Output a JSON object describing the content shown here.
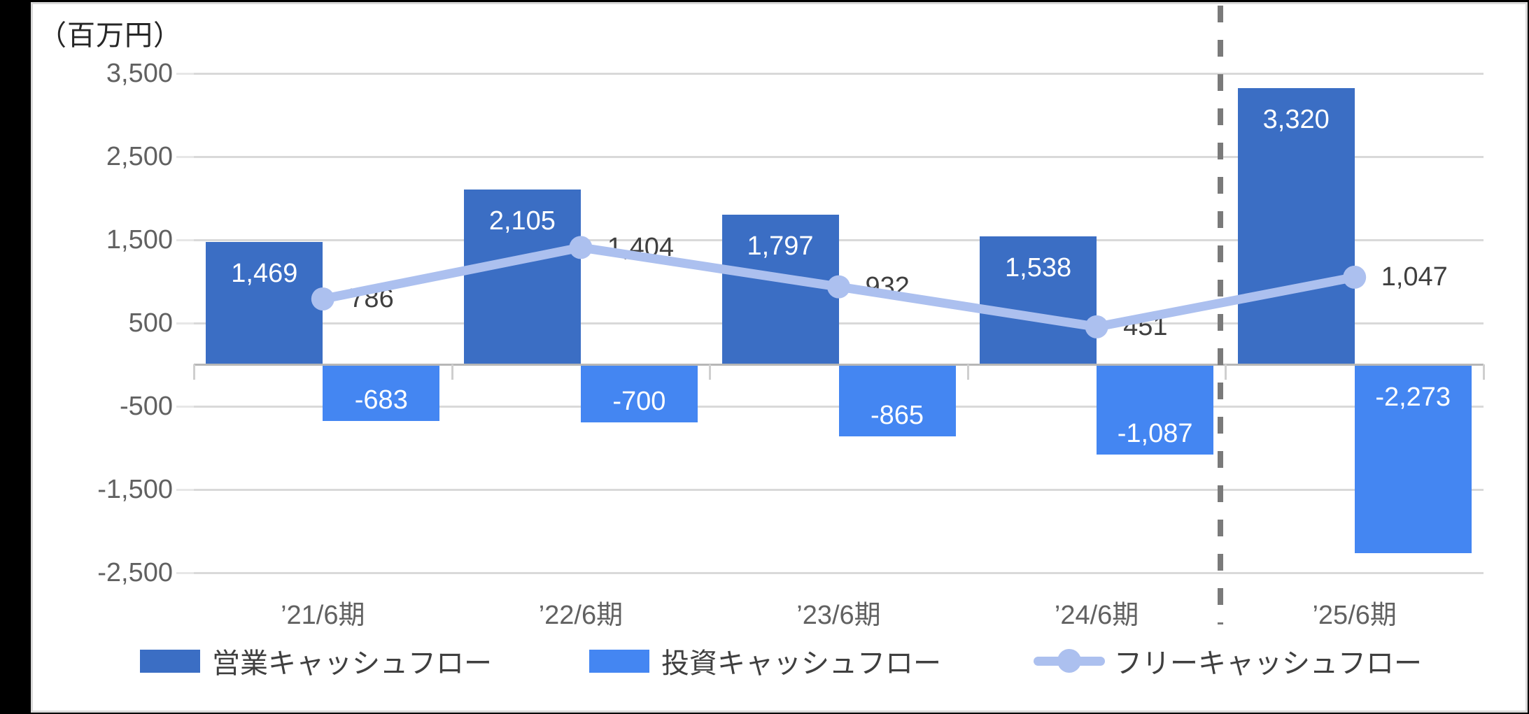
{
  "unit_label": "（百万円）",
  "legend": {
    "operating": "営業キャッシュフロー",
    "investing": "投資キャッシュフロー",
    "free": "フリーキャッシュフロー"
  },
  "colors": {
    "operating": "#3b6ec4",
    "investing": "#4486f2",
    "free_line": "#acc0ef",
    "gridline": "#d9d9d9",
    "grid_tick": "#e7e7e7",
    "axis": "#b7b7b7",
    "category_tick": "#cfcfcf",
    "separator": "#7a7a7a",
    "tick_text": "#616161",
    "line_label_text": "#3f3f3f",
    "bar_label_text": "#ffffff",
    "card_background": "#ffffff",
    "card_border": "#d9d9d9",
    "page_background": "#000000"
  },
  "chart_data": {
    "type": "bar",
    "subtype": "combo-bar-line",
    "title": "",
    "ylabel": "（百万円）",
    "xlabel": "",
    "categories": [
      "’21/6期",
      "’22/6期",
      "’23/6期",
      "’24/6期",
      "’25/6期"
    ],
    "series": [
      {
        "name": "営業キャッシュフロー",
        "type": "bar",
        "values": [
          1469,
          2105,
          1797,
          1538,
          3320
        ],
        "labels": [
          "1,469",
          "2,105",
          "1,797",
          "1,538",
          "3,320"
        ]
      },
      {
        "name": "投資キャッシュフロー",
        "type": "bar",
        "values": [
          -683,
          -700,
          -865,
          -1087,
          -2273
        ],
        "labels": [
          "-683",
          "-700",
          "-865",
          "-1,087",
          "-2,273"
        ]
      },
      {
        "name": "フリーキャッシュフロー",
        "type": "line",
        "values": [
          786,
          1404,
          932,
          451,
          1047
        ],
        "labels": [
          "786",
          "1,404",
          "932",
          "451",
          "1,047"
        ]
      }
    ],
    "y_ticks": [
      {
        "value": 3500,
        "label": "3,500"
      },
      {
        "value": 2500,
        "label": "2,500"
      },
      {
        "value": 1500,
        "label": "1,500"
      },
      {
        "value": 500,
        "label": "500"
      },
      {
        "value": -500,
        "label": "-500"
      },
      {
        "value": -1500,
        "label": "-1,500"
      },
      {
        "value": -2500,
        "label": "-2,500"
      }
    ],
    "ylim": [
      -2500,
      3500
    ],
    "grid": true,
    "legend_position": "bottom",
    "separator": {
      "type": "dashed-vertical-line",
      "between_categories": [
        "’24/6期",
        "’25/6期"
      ]
    }
  }
}
